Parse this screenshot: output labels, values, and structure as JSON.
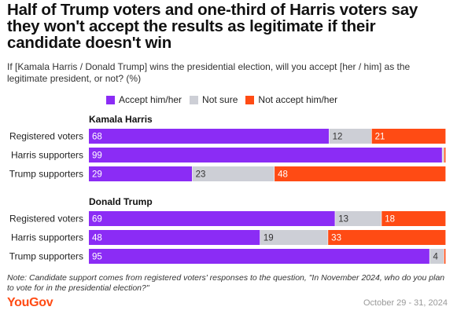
{
  "title": "Half of Trump voters and one-third of Harris voters say they won't accept the results as legitimate if their candidate doesn't win",
  "subtitle": "If [Kamala Harris / Donald Trump] wins the presidential election, will you accept [her / him] as the legitimate president, or not? (%)",
  "note": "Note: Candidate support comes from registered voters' responses to the question, \"In November 2024, who do you plan to vote for in the presidential election?\"",
  "brand": "YouGov",
  "date": "October 29 - 31, 2024",
  "colors": {
    "accept": "#8b2cf5",
    "not_sure": "#cdcfd6",
    "not_accept": "#ff4b14"
  },
  "chart_data": {
    "type": "bar",
    "orientation": "horizontal",
    "stacked": true,
    "legend": [
      "Accept him/her",
      "Not sure",
      "Not accept him/her"
    ],
    "legend_position": "top",
    "groups": [
      {
        "name": "Kamala Harris",
        "categories": [
          "Registered voters",
          "Harris supporters",
          "Trump supporters"
        ],
        "series": [
          {
            "name": "Accept him/her",
            "values": [
              68,
              99,
              29
            ]
          },
          {
            "name": "Not sure",
            "values": [
              12,
              0.5,
              23
            ]
          },
          {
            "name": "Not accept him/her",
            "values": [
              21,
              0.5,
              48
            ]
          }
        ],
        "labels": [
          [
            "68",
            "12",
            "21"
          ],
          [
            "99",
            "",
            ""
          ],
          [
            "29",
            "23",
            "48"
          ]
        ]
      },
      {
        "name": "Donald Trump",
        "categories": [
          "Registered voters",
          "Harris supporters",
          "Trump supporters"
        ],
        "series": [
          {
            "name": "Accept him/her",
            "values": [
              69,
              48,
              95
            ]
          },
          {
            "name": "Not sure",
            "values": [
              13,
              19,
              4
            ]
          },
          {
            "name": "Not accept him/her",
            "values": [
              18,
              33,
              0.5
            ]
          }
        ],
        "labels": [
          [
            "69",
            "13",
            "18"
          ],
          [
            "48",
            "19",
            "33"
          ],
          [
            "95",
            "4",
            ""
          ]
        ]
      }
    ],
    "xlim": [
      0,
      100
    ],
    "grid": false
  }
}
